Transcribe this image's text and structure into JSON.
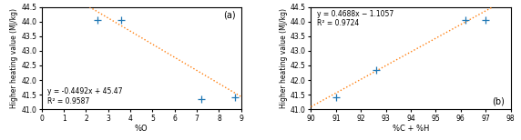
{
  "chart_data": [
    {
      "type": "scatter",
      "panel_label": "(a)",
      "xlabel": "%O",
      "ylabel": "Higher heating value (MJ/kg)",
      "annotations": [
        "y = -0.4492x + 45.47",
        "R² = 0.9587"
      ],
      "series": [
        {
          "type": "scatter",
          "marker": "+",
          "x": [
            2.5,
            3.6,
            7.2,
            8.7
          ],
          "values": [
            44.05,
            44.05,
            41.35,
            41.4
          ]
        },
        {
          "type": "line",
          "line_style": "dotted",
          "slope": -0.4492,
          "intercept": 45.47
        }
      ],
      "xlim": [
        0,
        9
      ],
      "ylim": [
        41.0,
        44.5
      ],
      "xticks": [
        0,
        1,
        2,
        3,
        4,
        5,
        6,
        7,
        8,
        9
      ],
      "yticks": [
        41.0,
        41.5,
        42.0,
        42.5,
        43.0,
        43.5,
        44.0,
        44.5
      ]
    },
    {
      "type": "scatter",
      "panel_label": "(b)",
      "xlabel": "%C + %H",
      "ylabel": "Higher heating value (MJ/kg)",
      "annotations": [
        "y = 0.4688x − 1.1057",
        "R² = 0.9724"
      ],
      "series": [
        {
          "type": "scatter",
          "marker": "+",
          "x": [
            91.0,
            92.6,
            96.2,
            97.0
          ],
          "values": [
            41.4,
            42.35,
            44.05,
            44.05
          ]
        },
        {
          "type": "line",
          "line_style": "dotted",
          "slope": 0.4688,
          "intercept": -1.1057
        }
      ],
      "xlim": [
        90,
        98
      ],
      "ylim": [
        41.0,
        44.5
      ],
      "xticks": [
        90,
        91,
        92,
        93,
        94,
        95,
        96,
        97,
        98
      ],
      "yticks": [
        41.0,
        41.5,
        42.0,
        42.5,
        43.0,
        43.5,
        44.0,
        44.5
      ]
    }
  ]
}
